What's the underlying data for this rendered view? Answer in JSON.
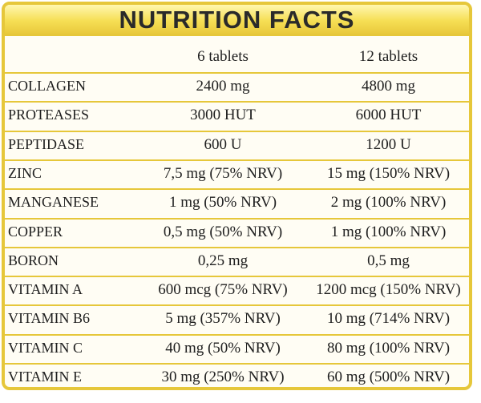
{
  "title": "NUTRITION FACTS",
  "columns": [
    "6 tablets",
    "12 tablets"
  ],
  "rows": [
    {
      "name": "COLLAGEN",
      "v1": "2400 mg",
      "v2": "4800 mg"
    },
    {
      "name": "PROTEASES",
      "v1": "3000 HUT",
      "v2": "6000 HUT"
    },
    {
      "name": "PEPTIDASE",
      "v1": "600 U",
      "v2": "1200 U"
    },
    {
      "name": "ZINC",
      "v1": "7,5 mg (75% NRV)",
      "v2": "15 mg (150% NRV)"
    },
    {
      "name": "MANGANESE",
      "v1": "1 mg (50% NRV)",
      "v2": "2 mg (100% NRV)"
    },
    {
      "name": "COPPER",
      "v1": "0,5 mg (50% NRV)",
      "v2": "1 mg (100% NRV)"
    },
    {
      "name": "BORON",
      "v1": "0,25 mg",
      "v2": "0,5 mg"
    },
    {
      "name": "VITAMIN A",
      "v1": "600 mcg (75% NRV)",
      "v2": "1200 mcg (150% NRV)"
    },
    {
      "name": "VITAMIN B6",
      "v1": "5 mg (357% NRV)",
      "v2": "10 mg (714% NRV)"
    },
    {
      "name": "VITAMIN C",
      "v1": "40 mg (50% NRV)",
      "v2": "80 mg (100% NRV)"
    },
    {
      "name": "VITAMIN E",
      "v1": "30 mg (250% NRV)",
      "v2": "60 mg (500% NRV)"
    }
  ],
  "colors": {
    "border": "#e6c73a",
    "title_bar": "#f6df55",
    "text": "#202020"
  }
}
